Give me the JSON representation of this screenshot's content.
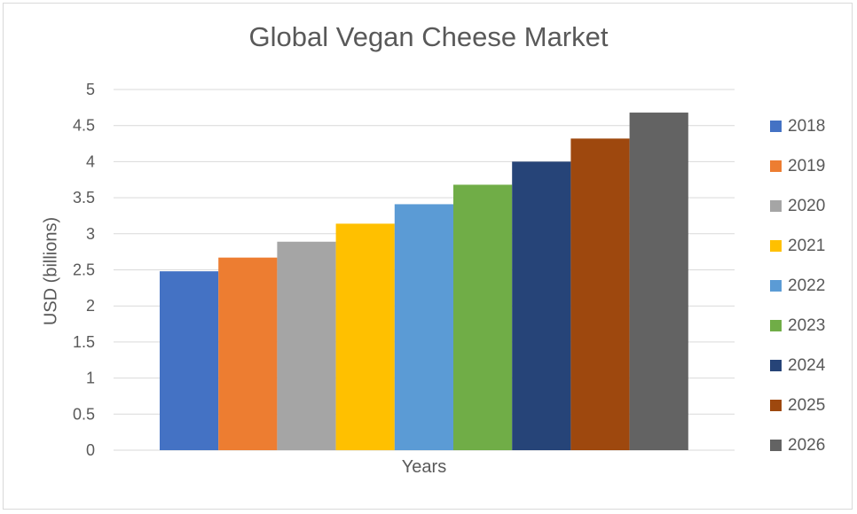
{
  "chart_data": {
    "type": "bar",
    "title": "Global Vegan Cheese Market",
    "xlabel": "Years",
    "ylabel": "USD (billions)",
    "ylim": [
      0,
      5
    ],
    "yticks": [
      "0",
      "0.5",
      "1",
      "1.5",
      "2",
      "2.5",
      "3",
      "3.5",
      "4",
      "4.5",
      "5"
    ],
    "grid": true,
    "legend_position": "right",
    "series": [
      {
        "name": "2018",
        "value": 2.48,
        "color": "#4472c4"
      },
      {
        "name": "2019",
        "value": 2.67,
        "color": "#ed7d31"
      },
      {
        "name": "2020",
        "value": 2.89,
        "color": "#a5a5a5"
      },
      {
        "name": "2021",
        "value": 3.14,
        "color": "#ffc000"
      },
      {
        "name": "2022",
        "value": 3.41,
        "color": "#5b9bd5"
      },
      {
        "name": "2023",
        "value": 3.68,
        "color": "#70ad47"
      },
      {
        "name": "2024",
        "value": 4.0,
        "color": "#264478"
      },
      {
        "name": "2025",
        "value": 4.32,
        "color": "#9e480e"
      },
      {
        "name": "2026",
        "value": 4.68,
        "color": "#636363"
      }
    ]
  }
}
